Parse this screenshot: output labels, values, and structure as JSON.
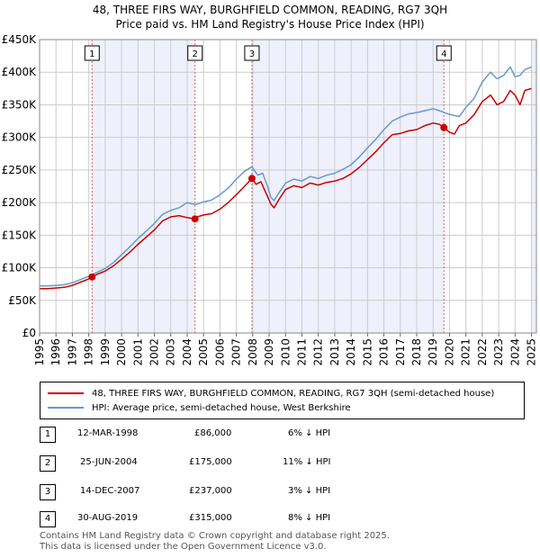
{
  "title": "48, THREE FIRS WAY, BURGHFIELD COMMON, READING, RG7 3QH",
  "subtitle": "Price paid vs. HM Land Registry's House Price Index (HPI)",
  "colors": {
    "property": "#cc0000",
    "hpi": "#6699cc",
    "shade": "#eef0fb",
    "grid": "#cccccc",
    "vline": "#cc0000"
  },
  "chart_data": {
    "type": "line",
    "title": "48, THREE FIRS WAY, BURGHFIELD COMMON, READING, RG7 3QH",
    "subtitle": "Price paid vs. HM Land Registry's House Price Index (HPI)",
    "xlabel": "",
    "ylabel": "",
    "xlim": [
      1995.0,
      2025.3
    ],
    "ylim": [
      0,
      450000
    ],
    "grid": true,
    "y_ticks": [
      {
        "value": 0,
        "label": "£0"
      },
      {
        "value": 50000,
        "label": "£50K"
      },
      {
        "value": 100000,
        "label": "£100K"
      },
      {
        "value": 150000,
        "label": "£150K"
      },
      {
        "value": 200000,
        "label": "£200K"
      },
      {
        "value": 250000,
        "label": "£250K"
      },
      {
        "value": 300000,
        "label": "£300K"
      },
      {
        "value": 350000,
        "label": "£350K"
      },
      {
        "value": 400000,
        "label": "£400K"
      },
      {
        "value": 450000,
        "label": "£450K"
      }
    ],
    "x_ticks": [
      "1995",
      "1996",
      "1997",
      "1998",
      "1999",
      "2000",
      "2001",
      "2002",
      "2003",
      "2004",
      "2005",
      "2006",
      "2007",
      "2008",
      "2009",
      "2010",
      "2011",
      "2012",
      "2013",
      "2014",
      "2015",
      "2016",
      "2017",
      "2018",
      "2019",
      "2020",
      "2021",
      "2022",
      "2023",
      "2024",
      "2025"
    ],
    "series": [
      {
        "name": "48, THREE FIRS WAY, BURGHFIELD COMMON, READING, RG7 3QH (semi-detached house)",
        "color": "#cc0000",
        "x": [
          1995.0,
          1995.5,
          1996.0,
          1996.5,
          1997.0,
          1997.5,
          1998.0,
          1998.2,
          1998.5,
          1999.0,
          1999.5,
          2000.0,
          2000.5,
          2001.0,
          2001.5,
          2002.0,
          2002.5,
          2003.0,
          2003.5,
          2004.0,
          2004.48,
          2004.6,
          2005.0,
          2005.5,
          2006.0,
          2006.5,
          2007.0,
          2007.5,
          2007.95,
          2008.2,
          2008.5,
          2008.8,
          2009.1,
          2009.3,
          2009.6,
          2010.0,
          2010.5,
          2011.0,
          2011.5,
          2012.0,
          2012.5,
          2013.0,
          2013.5,
          2014.0,
          2014.5,
          2015.0,
          2015.5,
          2016.0,
          2016.5,
          2017.0,
          2017.5,
          2018.0,
          2018.5,
          2019.0,
          2019.4,
          2019.66,
          2020.0,
          2020.3,
          2020.6,
          2021.0,
          2021.5,
          2022.0,
          2022.5,
          2022.9,
          2023.3,
          2023.7,
          2024.0,
          2024.3,
          2024.6,
          2025.0
        ],
        "values": [
          68000,
          68000,
          69000,
          70000,
          73000,
          78000,
          83000,
          86000,
          90000,
          95000,
          103000,
          113000,
          124000,
          136000,
          147000,
          158000,
          172000,
          178000,
          180000,
          177000,
          175000,
          178000,
          181000,
          183000,
          190000,
          200000,
          212000,
          225000,
          237000,
          228000,
          232000,
          215000,
          198000,
          192000,
          205000,
          220000,
          226000,
          223000,
          230000,
          227000,
          231000,
          233000,
          237000,
          244000,
          254000,
          266000,
          278000,
          292000,
          304000,
          306000,
          310000,
          312000,
          318000,
          322000,
          320000,
          315000,
          308000,
          305000,
          318000,
          322000,
          335000,
          355000,
          365000,
          350000,
          355000,
          372000,
          365000,
          350000,
          372000,
          375000
        ]
      },
      {
        "name": "HPI: Average price, semi-detached house, West Berkshire",
        "color": "#6699cc",
        "x": [
          1995.0,
          1995.5,
          1996.0,
          1996.5,
          1997.0,
          1997.5,
          1998.0,
          1998.5,
          1999.0,
          1999.5,
          2000.0,
          2000.5,
          2001.0,
          2001.5,
          2002.0,
          2002.5,
          2003.0,
          2003.5,
          2004.0,
          2004.5,
          2005.0,
          2005.5,
          2006.0,
          2006.5,
          2007.0,
          2007.5,
          2007.95,
          2008.3,
          2008.6,
          2008.9,
          2009.1,
          2009.3,
          2009.6,
          2010.0,
          2010.5,
          2011.0,
          2011.5,
          2012.0,
          2012.5,
          2013.0,
          2013.5,
          2014.0,
          2014.5,
          2015.0,
          2015.5,
          2016.0,
          2016.5,
          2017.0,
          2017.5,
          2018.0,
          2018.5,
          2019.0,
          2019.5,
          2019.8,
          2020.2,
          2020.6,
          2021.0,
          2021.5,
          2022.0,
          2022.5,
          2022.9,
          2023.3,
          2023.7,
          2024.0,
          2024.3,
          2024.6,
          2025.0
        ],
        "values": [
          72000,
          72000,
          73000,
          74000,
          77000,
          82000,
          87000,
          93000,
          99000,
          108000,
          120000,
          132000,
          145000,
          156000,
          168000,
          182000,
          188000,
          192000,
          200000,
          197000,
          201000,
          204000,
          212000,
          222000,
          236000,
          248000,
          255000,
          242000,
          245000,
          225000,
          208000,
          203000,
          215000,
          230000,
          236000,
          233000,
          240000,
          237000,
          242000,
          245000,
          251000,
          258000,
          270000,
          284000,
          297000,
          312000,
          325000,
          331000,
          336000,
          338000,
          341000,
          344000,
          340000,
          337000,
          334000,
          332000,
          346000,
          360000,
          385000,
          400000,
          390000,
          395000,
          408000,
          393000,
          395000,
          404000,
          408000
        ]
      }
    ],
    "markers": [
      {
        "label": "1",
        "x": 1998.2,
        "value": 86000
      },
      {
        "label": "2",
        "x": 2004.48,
        "value": 175000
      },
      {
        "label": "3",
        "x": 2007.95,
        "value": 237000
      },
      {
        "label": "4",
        "x": 2019.66,
        "value": 315000
      }
    ],
    "shaded_spans": [
      [
        1998.2,
        2004.48
      ],
      [
        2007.95,
        2019.66
      ],
      [
        2025.0,
        2025.3
      ]
    ]
  },
  "legend": {
    "property": "48, THREE FIRS WAY, BURGHFIELD COMMON, READING, RG7 3QH (semi-detached house)",
    "hpi": "HPI: Average price, semi-detached house, West Berkshire"
  },
  "transactions": [
    {
      "num": "1",
      "date": "12-MAR-1998",
      "price": "£86,000",
      "hpi": "6% ↓ HPI"
    },
    {
      "num": "2",
      "date": "25-JUN-2004",
      "price": "£175,000",
      "hpi": "11% ↓ HPI"
    },
    {
      "num": "3",
      "date": "14-DEC-2007",
      "price": "£237,000",
      "hpi": "3% ↓ HPI"
    },
    {
      "num": "4",
      "date": "30-AUG-2019",
      "price": "£315,000",
      "hpi": "8% ↓ HPI"
    }
  ],
  "footer": {
    "line1": "Contains HM Land Registry data © Crown copyright and database right 2025.",
    "line2": "This data is licensed under the Open Government Licence v3.0."
  }
}
